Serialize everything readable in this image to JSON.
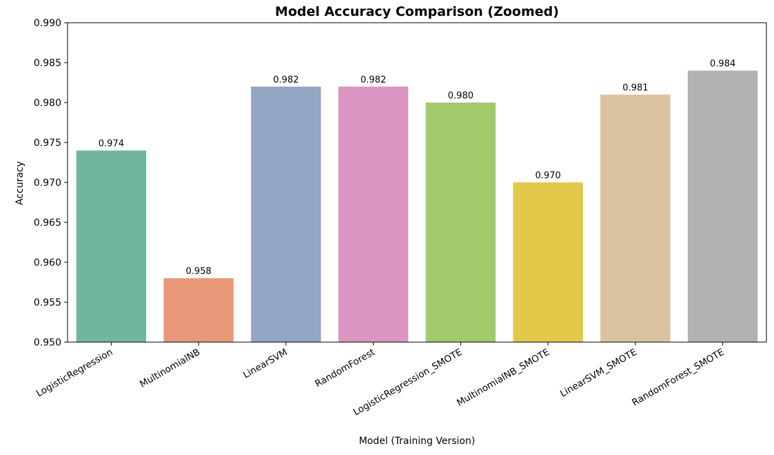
{
  "chart_data": {
    "type": "bar",
    "title": "Model Accuracy Comparison (Zoomed)",
    "xlabel": "Model (Training Version)",
    "ylabel": "Accuracy",
    "ylim": [
      0.95,
      0.99
    ],
    "yticks": [
      "0.950",
      "0.955",
      "0.960",
      "0.965",
      "0.970",
      "0.975",
      "0.980",
      "0.985",
      "0.990"
    ],
    "categories": [
      "LogisticRegression",
      "MultinomialNB",
      "LinearSVM",
      "RandomForest",
      "LogisticRegression_SMOTE",
      "MultinomialNB_SMOTE",
      "LinearSVM_SMOTE",
      "RandomForest_SMOTE"
    ],
    "values": [
      0.974,
      0.958,
      0.982,
      0.982,
      0.98,
      0.97,
      0.981,
      0.984
    ],
    "value_labels": [
      "0.974",
      "0.958",
      "0.982",
      "0.982",
      "0.980",
      "0.970",
      "0.981",
      "0.984"
    ],
    "colors": [
      "#72b59f",
      "#e89878",
      "#94a5c3",
      "#db96c1",
      "#a3c96a",
      "#e3c94a",
      "#dbc29f",
      "#b2b2b2"
    ],
    "grid": false,
    "legend": "none"
  }
}
